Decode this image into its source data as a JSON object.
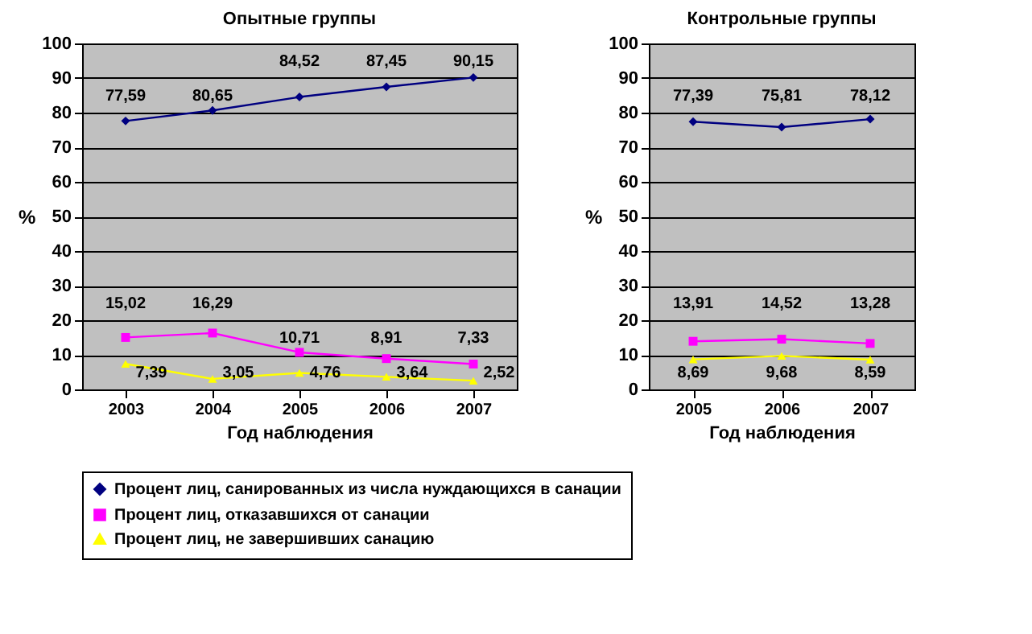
{
  "chart_data": [
    {
      "type": "line",
      "title": "Опытные группы",
      "xlabel": "Год наблюдения",
      "ylabel": "%",
      "categories": [
        "2003",
        "2004",
        "2005",
        "2006",
        "2007"
      ],
      "ylim": [
        0,
        100
      ],
      "yticks": [
        0,
        10,
        20,
        30,
        40,
        50,
        60,
        70,
        80,
        90,
        100
      ],
      "grid": "y",
      "legend": "bottom",
      "series": [
        {
          "name": "Процент лиц, санированных из числа нуждающихся в санации",
          "color": "#000080",
          "marker": "diamond",
          "line_style": "solid",
          "values": [
            77.59,
            80.65,
            84.52,
            87.45,
            90.15
          ],
          "value_labels": [
            "77,59",
            "80,65",
            "84,52",
            "87,45",
            "90,15"
          ]
        },
        {
          "name": "Процент лиц, отказавшихся от санации",
          "color": "#ff00ff",
          "marker": "square",
          "line_style": "solid",
          "values": [
            15.02,
            16.29,
            10.71,
            8.91,
            7.33
          ],
          "value_labels": [
            "15,02",
            "16,29",
            "10,71",
            "8,91",
            "7,33"
          ]
        },
        {
          "name": "Процент лиц, не завершивших санацию",
          "color": "#ffff00",
          "marker": "triangle",
          "line_style": "solid",
          "values": [
            7.39,
            3.05,
            4.76,
            3.64,
            2.52
          ],
          "value_labels": [
            "7,39",
            "3,05",
            "4,76",
            "3,64",
            "2,52"
          ]
        }
      ]
    },
    {
      "type": "line",
      "title": "Контрольные группы",
      "xlabel": "Год наблюдения",
      "ylabel": "%",
      "categories": [
        "2005",
        "2006",
        "2007"
      ],
      "ylim": [
        0,
        100
      ],
      "yticks": [
        0,
        10,
        20,
        30,
        40,
        50,
        60,
        70,
        80,
        90,
        100
      ],
      "grid": "y",
      "legend": "bottom",
      "series": [
        {
          "name": "Процент лиц, санированных из числа нуждающихся в санации",
          "color": "#000080",
          "marker": "diamond",
          "line_style": "solid",
          "values": [
            77.39,
            75.81,
            78.12
          ],
          "value_labels": [
            "77,39",
            "75,81",
            "78,12"
          ]
        },
        {
          "name": "Процент лиц, отказавшихся от санации",
          "color": "#ff00ff",
          "marker": "square",
          "line_style": "solid",
          "values": [
            13.91,
            14.52,
            13.28
          ],
          "value_labels": [
            "13,91",
            "14,52",
            "13,28"
          ]
        },
        {
          "name": "Процент лиц, не завершивших санацию",
          "color": "#ffff00",
          "marker": "triangle",
          "line_style": "solid",
          "values": [
            8.69,
            9.68,
            8.59
          ],
          "value_labels": [
            "8,69",
            "9,68",
            "8,59"
          ]
        }
      ]
    }
  ]
}
